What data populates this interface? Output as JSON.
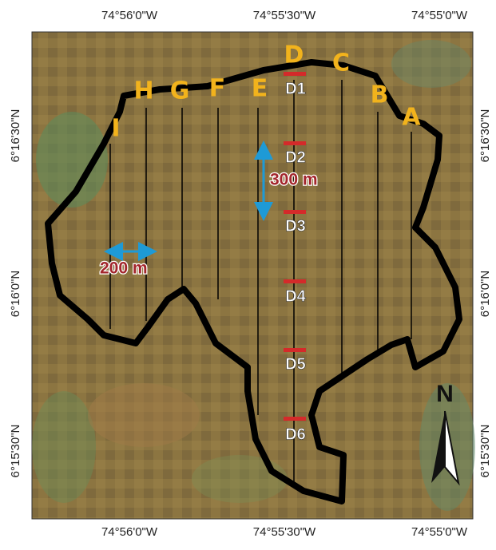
{
  "axes": {
    "top": [
      "74°56'0\"W",
      "74°55'30\"W",
      "74°55'0\"W"
    ],
    "bottom": [
      "74°56'0\"W",
      "74°55'30\"W",
      "74°55'0\"W"
    ],
    "left": [
      "6°16'30\"N",
      "6°16'0\"N",
      "6°15'30\"N"
    ],
    "right": [
      "6°16'30\"N",
      "6°16'0\"N",
      "6°15'30\"N"
    ]
  },
  "transects": [
    "A",
    "B",
    "C",
    "D",
    "E",
    "F",
    "G",
    "H",
    "I"
  ],
  "stations": [
    "D1",
    "D2",
    "D3",
    "D4",
    "D5",
    "D6"
  ],
  "scales": {
    "vertical": "300 m",
    "horizontal": "200 m"
  },
  "north": "N"
}
